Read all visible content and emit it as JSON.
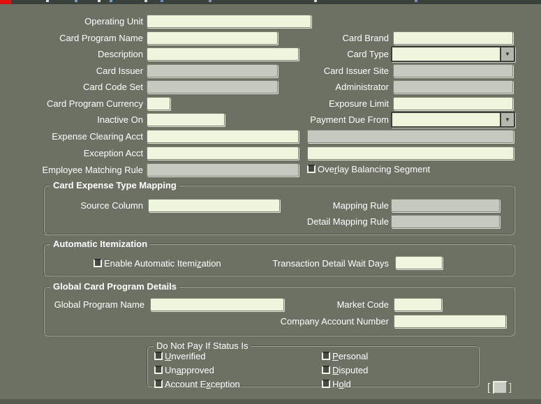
{
  "window": {
    "background_color": "#6c7164",
    "toolbar_strip_color": "#3a403c",
    "toolbar_accent_color": "#e01010",
    "bottom_strip_color": "#565b50"
  },
  "palette": {
    "field_enabled": "#edf5dd",
    "field_disabled": "#c6c9bf",
    "label_text": "#ffffff"
  },
  "icons": {
    "dropdown_arrow": "▼"
  },
  "fields": {
    "operating_unit": {
      "label": "Operating Unit",
      "value": "",
      "disabled": false
    },
    "card_program_name": {
      "label": "Card Program Name",
      "value": "",
      "disabled": false
    },
    "description": {
      "label": "Description",
      "value": "",
      "disabled": false
    },
    "card_issuer": {
      "label": "Card Issuer",
      "value": "",
      "disabled": true
    },
    "card_code_set": {
      "label": "Card Code Set",
      "value": "",
      "disabled": true
    },
    "card_program_currency": {
      "label": "Card Program Currency",
      "value": "",
      "disabled": false
    },
    "inactive_on": {
      "label": "Inactive On",
      "value": "",
      "disabled": false
    },
    "expense_clearing_acct": {
      "label": "Expense Clearing Acct",
      "value": "",
      "description_value": "",
      "disabled": false
    },
    "exception_acct": {
      "label": "Exception Acct",
      "value": "",
      "description_value": "",
      "disabled": false
    },
    "employee_matching_rule": {
      "label": "Employee Matching Rule",
      "value": "",
      "disabled": true
    },
    "card_brand": {
      "label": "Card Brand",
      "value": "",
      "disabled": false
    },
    "card_type": {
      "label": "Card Type",
      "value": "",
      "disabled": false
    },
    "card_issuer_site": {
      "label": "Card Issuer Site",
      "value": "",
      "disabled": true
    },
    "administrator": {
      "label": "Administrator",
      "value": "",
      "disabled": true
    },
    "exposure_limit": {
      "label": "Exposure Limit",
      "value": "",
      "disabled": false
    },
    "payment_due_from": {
      "label": "Payment Due From",
      "value": "",
      "disabled": false
    },
    "overlay_balancing_segment": {
      "label": "Overlay Balancing Segment",
      "underline": 3,
      "checked": false
    }
  },
  "sections": {
    "card_expense_type_mapping": {
      "title": "Card Expense Type Mapping",
      "fields": {
        "source_column": {
          "label": "Source Column",
          "value": "",
          "disabled": false
        },
        "mapping_rule": {
          "label": "Mapping Rule",
          "value": "",
          "disabled": true
        },
        "detail_mapping_rule": {
          "label": "Detail Mapping Rule",
          "value": "",
          "disabled": true
        }
      }
    },
    "automatic_itemization": {
      "title": "Automatic Itemization",
      "enable_checkbox": {
        "label": "Enable Automatic Itemization",
        "underline": 22,
        "checked": false
      },
      "transaction_detail_wait_days": {
        "label": "Transaction Detail Wait Days",
        "value": "",
        "disabled": false
      }
    },
    "global_card_program_details": {
      "title": "Global Card Program Details",
      "fields": {
        "global_program_name": {
          "label": "Global Program Name",
          "value": "",
          "disabled": false
        },
        "market_code": {
          "label": "Market Code",
          "value": "",
          "disabled": false
        },
        "company_account_number": {
          "label": "Company Account Number",
          "value": "",
          "disabled": false
        }
      }
    },
    "do_not_pay_if_status_is": {
      "title": "Do Not Pay If Status Is",
      "checkboxes": [
        {
          "label": "Unverified",
          "underline": 0,
          "checked": false
        },
        {
          "label": "Unapproved",
          "underline": 2,
          "checked": false
        },
        {
          "label": "Account Exception",
          "underline": 9,
          "checked": false
        },
        {
          "label": "Personal",
          "underline": 0,
          "checked": false
        },
        {
          "label": "Disputed",
          "underline": 0,
          "checked": false
        },
        {
          "label": "Hold",
          "underline": 1,
          "checked": false
        }
      ]
    }
  },
  "record_indicator": {
    "open_bracket": "[",
    "close_bracket": "]"
  }
}
